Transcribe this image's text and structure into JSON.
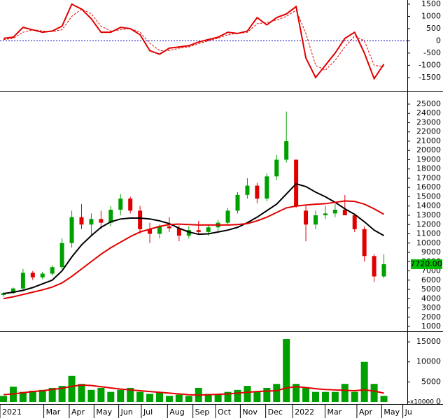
{
  "chart_data": [
    {
      "type": "line",
      "series": [
        {
          "color": "#e00000",
          "dash": false,
          "values": [
            100,
            150,
            550,
            450,
            350,
            400,
            600,
            1500,
            1300,
            900,
            350,
            350,
            550,
            500,
            250,
            -400,
            -550,
            -300,
            -250,
            -200,
            -50,
            50,
            150,
            350,
            300,
            400,
            950,
            650,
            950,
            1100,
            1400,
            -700,
            -1500,
            -1000,
            -500,
            100,
            350,
            -500,
            -1550,
            -950
          ]
        },
        {
          "color": "#e00000",
          "dash": true,
          "values": [
            50,
            100,
            350,
            450,
            400,
            380,
            450,
            1000,
            1300,
            1100,
            600,
            400,
            450,
            500,
            350,
            -100,
            -400,
            -400,
            -300,
            -250,
            -120,
            0,
            100,
            250,
            300,
            350,
            700,
            750,
            850,
            1000,
            1250,
            300,
            -1000,
            -1200,
            -800,
            -250,
            200,
            0,
            -1000,
            -1050
          ]
        }
      ],
      "zero_line_color": "#0000c0",
      "ylim": [
        -1990,
        1670
      ],
      "yticks": [
        1500,
        1000,
        500,
        0,
        -500,
        -1000,
        -1500
      ]
    },
    {
      "type": "candlestick",
      "up_color": "#00a000",
      "down_color": "#e00000",
      "open": [
        4400,
        4600,
        5100,
        6800,
        6300,
        6700,
        7400,
        10000,
        12800,
        12000,
        12600,
        12200,
        13600,
        14800,
        13500,
        11500,
        11000,
        11800,
        11600,
        10800,
        11400,
        11200,
        11700,
        12200,
        13500,
        15200,
        16200,
        14800,
        17200,
        19000,
        19000,
        13500,
        12000,
        13000,
        13200,
        13600,
        13000,
        11500,
        8600,
        6400
      ],
      "high": [
        4700,
        5200,
        7200,
        7000,
        6900,
        7600,
        10500,
        13500,
        14200,
        13200,
        13500,
        14000,
        15300,
        15000,
        14000,
        12200,
        12000,
        12800,
        11900,
        11800,
        12400,
        12000,
        12500,
        13800,
        15500,
        17000,
        16500,
        17500,
        19500,
        24200,
        19000,
        14000,
        13500,
        14000,
        14200,
        15200,
        13200,
        11800,
        8800,
        8800
      ],
      "low": [
        4200,
        4500,
        5000,
        6000,
        6100,
        6500,
        7200,
        9500,
        11500,
        10800,
        11500,
        11800,
        13000,
        13200,
        11000,
        10000,
        10500,
        11200,
        10200,
        10500,
        11000,
        10800,
        11300,
        12000,
        13200,
        14800,
        14300,
        14500,
        16800,
        18700,
        13800,
        10200,
        11500,
        12600,
        12800,
        13200,
        11200,
        8000,
        5800,
        6200
      ],
      "close": [
        4600,
        5100,
        6800,
        6300,
        6700,
        7400,
        10000,
        12800,
        12000,
        12600,
        12200,
        13600,
        14800,
        13500,
        11500,
        11000,
        11800,
        11600,
        10800,
        11400,
        11200,
        11700,
        12200,
        13500,
        15200,
        16200,
        14800,
        17200,
        19000,
        21000,
        14000,
        12000,
        13000,
        13200,
        13600,
        13000,
        11500,
        8600,
        6400,
        7720
      ],
      "series": [
        {
          "color": "#000000",
          "values": [
            4550,
            4700,
            4900,
            5200,
            5600,
            6000,
            7000,
            8500,
            9800,
            10800,
            11700,
            12300,
            12600,
            12700,
            12700,
            12600,
            12400,
            12100,
            11600,
            11200,
            10950,
            11000,
            11200,
            11400,
            11700,
            12200,
            12800,
            13500,
            14200,
            15300,
            16400,
            16100,
            15500,
            15000,
            14400,
            13700,
            13100,
            12300,
            11400,
            10800
          ]
        },
        {
          "color": "#e00000",
          "values": [
            4000,
            4200,
            4450,
            4700,
            4950,
            5250,
            5700,
            6400,
            7200,
            8000,
            8800,
            9500,
            10100,
            10700,
            11200,
            11500,
            11800,
            12000,
            12050,
            12000,
            11950,
            11950,
            11950,
            11950,
            12000,
            12100,
            12400,
            12800,
            13300,
            13800,
            14000,
            14100,
            14200,
            14250,
            14400,
            14550,
            14500,
            14200,
            13700,
            13100
          ]
        }
      ],
      "last_price": {
        "value": 7720,
        "label": "7720.00",
        "color": "#00c000"
      },
      "ylim": [
        550,
        26280
      ],
      "yticks": [
        1000,
        2000,
        3000,
        4000,
        5000,
        6000,
        7000,
        8000,
        9000,
        10000,
        11000,
        12000,
        13000,
        14000,
        15000,
        16000,
        17000,
        18000,
        19000,
        20000,
        21000,
        22000,
        23000,
        24000,
        25000
      ]
    },
    {
      "type": "bar",
      "color": "#00a000",
      "values": [
        1500,
        3800,
        2500,
        2800,
        3000,
        3500,
        4000,
        6500,
        4500,
        3000,
        3500,
        2500,
        3000,
        3500,
        2500,
        2000,
        2500,
        1500,
        1800,
        1500,
        3500,
        2000,
        2000,
        2500,
        3000,
        4000,
        2500,
        3500,
        4500,
        15700,
        4500,
        3500,
        2500,
        2500,
        2500,
        4500,
        2500,
        10000,
        4500,
        1500
      ],
      "series": [
        {
          "color": "#e00000",
          "values": [
            1800,
            2000,
            2300,
            2600,
            2800,
            3100,
            3400,
            3900,
            4200,
            4100,
            3800,
            3500,
            3200,
            3000,
            2800,
            2600,
            2400,
            2200,
            2000,
            1800,
            1700,
            1800,
            1900,
            2000,
            2200,
            2400,
            2600,
            2700,
            2800,
            3500,
            3800,
            3600,
            3300,
            3100,
            3000,
            2900,
            2800,
            3000,
            2700,
            2200
          ]
        }
      ],
      "unit": "x10000",
      "ylim": [
        0,
        17280
      ],
      "yticks": [
        0,
        5000,
        10000,
        15000
      ],
      "x": [
        0,
        1,
        2,
        3,
        4,
        5,
        6,
        7,
        8,
        9,
        10,
        11,
        12,
        13,
        14,
        15,
        16,
        17,
        18,
        19,
        20,
        21,
        22,
        23,
        24,
        25,
        26,
        27,
        28,
        29,
        30,
        31,
        32,
        33,
        34,
        35,
        36,
        37,
        38,
        39
      ],
      "xlim": [
        -0.36,
        41.4
      ],
      "xticks": [
        {
          "value": -0.36,
          "label": "2021"
        },
        {
          "value": 4.13,
          "label": "Mar"
        },
        {
          "value": 6.74,
          "label": "Apr"
        },
        {
          "value": 9.28,
          "label": "May"
        },
        {
          "value": 11.81,
          "label": "Jun"
        },
        {
          "value": 14.13,
          "label": "Jul"
        },
        {
          "value": 16.81,
          "label": "Aug"
        },
        {
          "value": 19.42,
          "label": "Sep"
        },
        {
          "value": 21.74,
          "label": "Oct"
        },
        {
          "value": 24.28,
          "label": "Nov"
        },
        {
          "value": 26.88,
          "label": "Dec"
        },
        {
          "value": 29.64,
          "label": "2022"
        },
        {
          "value": 32.97,
          "label": "Mar"
        },
        {
          "value": 36.23,
          "label": "Apr"
        },
        {
          "value": 38.77,
          "label": "May"
        },
        {
          "value": 40.94,
          "label": "Ju"
        }
      ]
    }
  ]
}
